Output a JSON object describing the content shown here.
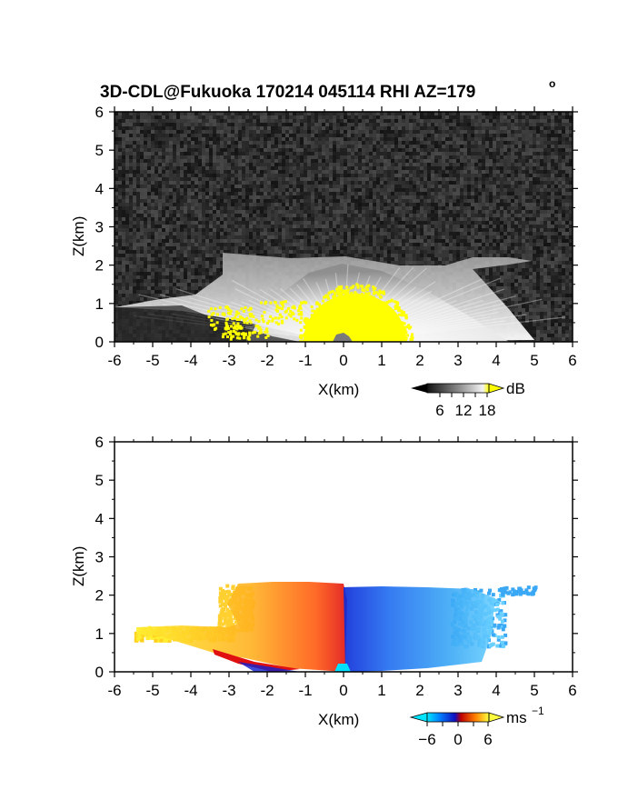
{
  "title": "3D-CDL@Fukuoka 170214 045114 RHI AZ=179",
  "title_degree": "o",
  "chart_data": [
    {
      "type": "heatmap",
      "panel": "reflectivity",
      "xlabel": "X(km)",
      "ylabel": "Z(km)",
      "xlim": [
        -6,
        6
      ],
      "ylim": [
        0,
        6
      ],
      "xticks": [
        "-6",
        "-5",
        "-4",
        "-3",
        "-2",
        "-1",
        "0",
        "1",
        "2",
        "3",
        "4",
        "5",
        "6"
      ],
      "yticks": [
        "0",
        "1",
        "2",
        "3",
        "4",
        "5",
        "6"
      ],
      "colorbar": {
        "unit": "dB",
        "ticks": [
          "6",
          "12",
          "18"
        ],
        "range": [
          0,
          21
        ]
      },
      "colors": {
        "background_noise": "#2a2a2a",
        "strong_echo": "#ffff00",
        "weak_echo": "#e8e8e8"
      },
      "echo_top_profile": {
        "x": [
          -3.0,
          -2.5,
          -1.5,
          -0.5,
          0.0,
          1.0,
          2.0,
          3.0,
          4.0,
          5.0
        ],
        "z": [
          2.3,
          2.3,
          2.25,
          2.3,
          2.3,
          2.2,
          2.1,
          2.0,
          2.2,
          2.15
        ]
      },
      "strong_core": {
        "x_range": [
          -1.2,
          1.5
        ],
        "z_top": 1.4
      }
    },
    {
      "type": "heatmap",
      "panel": "doppler_velocity",
      "xlabel": "X(km)",
      "ylabel": "Z(km)",
      "xlim": [
        -6,
        6
      ],
      "ylim": [
        0,
        6
      ],
      "xticks": [
        "-6",
        "-5",
        "-4",
        "-3",
        "-2",
        "-1",
        "0",
        "1",
        "2",
        "3",
        "4",
        "5",
        "6"
      ],
      "yticks": [
        "0",
        "1",
        "2",
        "3",
        "4",
        "5",
        "6"
      ],
      "colorbar": {
        "unit": "ms",
        "unit_exponent": "−1",
        "ticks": [
          "−6",
          "0",
          "6"
        ],
        "range": [
          -8,
          8
        ]
      },
      "velocity_field": {
        "x_range": [
          -5.5,
          5.0
        ],
        "z_range": [
          0.0,
          2.35
        ],
        "approaching_side": "x>0 (negative, blue)",
        "receding_side": "x<0 (positive, red-yellow)"
      }
    }
  ]
}
